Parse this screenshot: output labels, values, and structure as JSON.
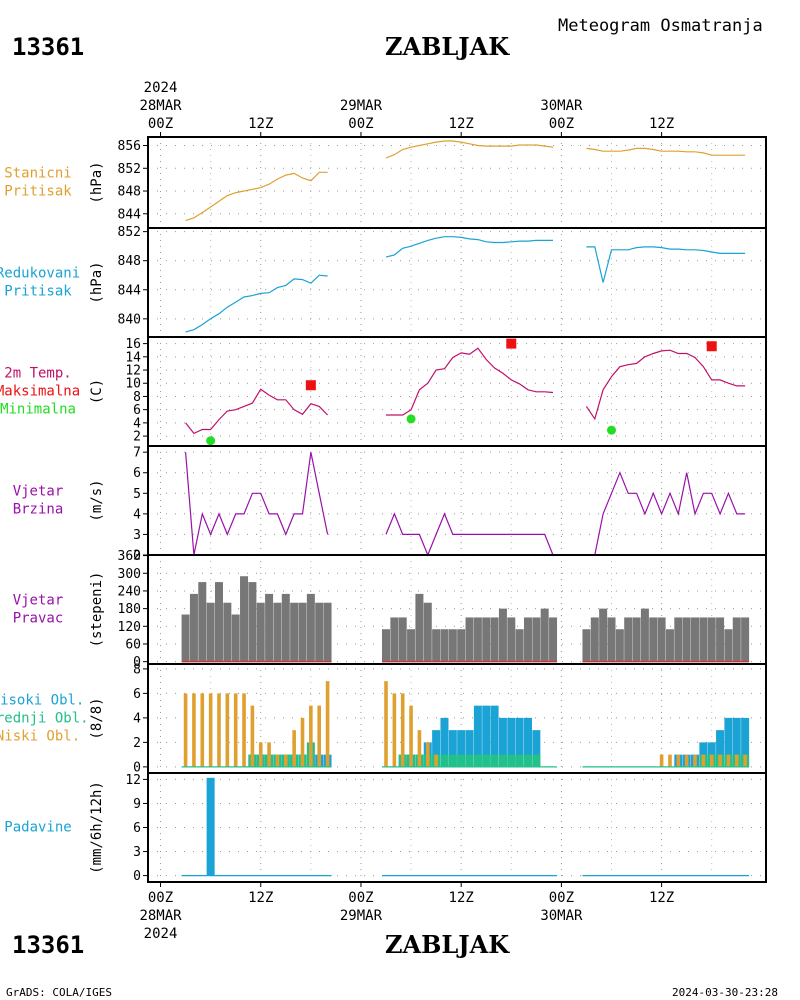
{
  "header": {
    "station_id": "13361",
    "station_name": "ZABLJAK",
    "product": "Meteogram Osmatranja"
  },
  "footer": {
    "station_id": "13361",
    "station_name": "ZABLJAK",
    "credit": "GrADS: COLA/IGES",
    "timestamp": "2024-03-30-23:28"
  },
  "time_axis": {
    "ticks": [
      {
        "t": 0,
        "label": "00Z",
        "date": "28MAR",
        "year": "2024"
      },
      {
        "t": 12,
        "label": "12Z"
      },
      {
        "t": 24,
        "label": "00Z",
        "date": "29MAR"
      },
      {
        "t": 36,
        "label": "12Z"
      },
      {
        "t": 48,
        "label": "00Z",
        "date": "30MAR"
      },
      {
        "t": 60,
        "label": "12Z"
      }
    ]
  },
  "colors": {
    "pressure": "#e0a030",
    "redpressure": "#1aa3d4",
    "temp": "#c0106a",
    "tmax": "#ee1111",
    "tmin": "#22dd22",
    "wind": "#9911aa",
    "direction": "#777777",
    "high_cloud": "#1aa3d4",
    "mid_cloud": "#22c08a",
    "low_cloud": "#e0a030",
    "precip": "#1aa3d4"
  },
  "chart_data": [
    {
      "id": "pressure",
      "type": "line",
      "label_lines": [
        "Stanicni",
        "Pritisak"
      ],
      "unit": "(hPa)",
      "ylim": [
        841.5,
        857.5
      ],
      "yticks": [
        844,
        848,
        852,
        856
      ],
      "series": [
        {
          "x": [
            3,
            4,
            5,
            6,
            7,
            8,
            9,
            10,
            11,
            12,
            13,
            14,
            15,
            16,
            17,
            18,
            19,
            20
          ],
          "y": [
            842.8,
            843.3,
            844.2,
            845.2,
            846.2,
            847.2,
            847.7,
            848.0,
            848.3,
            848.6,
            849.2,
            850.1,
            850.8,
            851.1,
            850.3,
            849.8,
            851.3,
            851.3
          ]
        },
        {
          "x": [
            27,
            28,
            29,
            30,
            31,
            32,
            33,
            34,
            35,
            36,
            37,
            38,
            39,
            40,
            41,
            42,
            43,
            44,
            45,
            46,
            47
          ],
          "y": [
            853.8,
            854.4,
            855.3,
            855.7,
            856.0,
            856.3,
            856.6,
            856.8,
            856.8,
            856.6,
            856.3,
            856.0,
            855.9,
            855.9,
            855.9,
            855.9,
            856.1,
            856.1,
            856.1,
            855.9,
            855.7
          ]
        },
        {
          "x": [
            51,
            52,
            53,
            54,
            55,
            56,
            57,
            58,
            59,
            60,
            61,
            62,
            63,
            64,
            65,
            66,
            67,
            68,
            69,
            70
          ],
          "y": [
            855.5,
            855.3,
            855.0,
            855.0,
            855.0,
            855.2,
            855.5,
            855.5,
            855.3,
            855.0,
            855.0,
            855.0,
            854.9,
            854.9,
            854.7,
            854.3,
            854.3,
            854.3,
            854.3,
            854.3
          ]
        }
      ]
    },
    {
      "id": "redpressure",
      "type": "line",
      "label_lines": [
        "Redukovani",
        "Pritisak"
      ],
      "unit": "(hPa)",
      "ylim": [
        837.5,
        852.5
      ],
      "yticks": [
        840,
        844,
        848,
        852
      ],
      "series": [
        {
          "x": [
            3,
            4,
            5,
            6,
            7,
            8,
            9,
            10,
            11,
            12,
            13,
            14,
            15,
            16,
            17,
            18,
            19,
            20
          ],
          "y": [
            838.2,
            838.5,
            839.2,
            840.0,
            840.7,
            841.6,
            842.3,
            843.0,
            843.2,
            843.5,
            843.6,
            844.3,
            844.6,
            845.5,
            845.4,
            844.9,
            846.0,
            845.9
          ]
        },
        {
          "x": [
            27,
            28,
            29,
            30,
            31,
            32,
            33,
            34,
            35,
            36,
            37,
            38,
            39,
            40,
            41,
            42,
            43,
            44,
            45,
            46,
            47
          ],
          "y": [
            848.5,
            848.8,
            849.7,
            850.0,
            850.4,
            850.8,
            851.1,
            851.3,
            851.3,
            851.2,
            851.0,
            850.9,
            850.6,
            850.5,
            850.5,
            850.6,
            850.7,
            850.7,
            850.8,
            850.8,
            850.8
          ]
        },
        {
          "x": [
            51,
            52,
            53,
            54,
            55,
            56,
            57,
            58,
            59,
            60,
            61,
            62,
            63,
            64,
            65,
            66,
            67,
            68,
            69,
            70
          ],
          "y": [
            849.9,
            849.9,
            845.0,
            849.5,
            849.5,
            849.5,
            849.8,
            849.9,
            849.9,
            849.8,
            849.6,
            849.6,
            849.5,
            849.5,
            849.4,
            849.2,
            849.0,
            849.0,
            849.0,
            849.0
          ]
        }
      ]
    },
    {
      "id": "temperature",
      "type": "line",
      "label_lines": [
        "2m Temp.",
        "Maksimalna",
        "Minimalna"
      ],
      "unit": "(C)",
      "ylim": [
        0.5,
        17
      ],
      "yticks": [
        2,
        4,
        6,
        8,
        10,
        12,
        14,
        16
      ],
      "series": [
        {
          "name": "2m Temp.",
          "segments": [
            {
              "x": [
                3,
                4,
                5,
                6,
                7,
                8,
                9,
                10,
                11,
                12,
                13,
                14,
                15,
                16,
                17,
                18,
                19,
                20
              ],
              "y": [
                4.0,
                2.4,
                3.0,
                3.0,
                4.5,
                5.8,
                6.0,
                6.5,
                7.0,
                9.1,
                8.2,
                7.5,
                7.5,
                6.0,
                5.3,
                6.9,
                6.5,
                5.2
              ]
            },
            {
              "x": [
                27,
                28,
                29,
                30,
                31,
                32,
                33,
                34,
                35,
                36,
                37,
                38,
                39,
                40,
                41,
                42,
                43,
                44,
                45,
                46,
                47
              ],
              "y": [
                5.2,
                5.2,
                5.2,
                6.0,
                9.0,
                10.0,
                12.0,
                12.2,
                13.9,
                14.6,
                14.4,
                15.3,
                13.6,
                12.3,
                11.5,
                10.5,
                9.9,
                9.0,
                8.7,
                8.7,
                8.6
              ]
            },
            {
              "x": [
                51,
                52,
                53,
                54,
                55,
                56,
                57,
                58,
                59,
                60,
                61,
                62,
                63,
                64,
                65,
                66,
                67,
                68,
                69,
                70
              ],
              "y": [
                6.5,
                4.6,
                9.0,
                11.0,
                12.5,
                12.8,
                13.0,
                14.0,
                14.5,
                14.9,
                15.0,
                14.5,
                14.5,
                13.9,
                12.5,
                10.5,
                10.5,
                10.0,
                9.6,
                9.6
              ]
            }
          ]
        },
        {
          "name": "Maksimalna",
          "x": [
            18,
            42,
            66
          ],
          "y": [
            9.7,
            16.0,
            15.6
          ]
        },
        {
          "name": "Minimalna",
          "x": [
            6,
            30,
            54
          ],
          "y": [
            1.3,
            4.6,
            2.9
          ]
        }
      ]
    },
    {
      "id": "wind_speed",
      "type": "line",
      "label_lines": [
        "Vjetar",
        "Brzina"
      ],
      "unit": "(m/s)",
      "ylim": [
        2,
        7.3
      ],
      "yticks": [
        2,
        3,
        4,
        5,
        6,
        7
      ],
      "series": [
        {
          "x": [
            3,
            4,
            5,
            6,
            7,
            8,
            9,
            10,
            11,
            12,
            13,
            14,
            15,
            16,
            17,
            18,
            19,
            20
          ],
          "y": [
            7,
            2,
            4,
            3,
            4,
            3,
            4,
            4,
            5,
            5,
            4,
            4,
            3,
            4,
            4,
            7,
            5,
            3
          ]
        },
        {
          "x": [
            27,
            28,
            29,
            30,
            31,
            32,
            33,
            34,
            35,
            36,
            37,
            38,
            39,
            40,
            41,
            42,
            43,
            44,
            45,
            46,
            47
          ],
          "y": [
            3,
            4,
            3,
            3,
            3,
            2,
            3,
            4,
            3,
            3,
            3,
            3,
            3,
            3,
            3,
            3,
            3,
            3,
            3,
            3,
            2
          ]
        },
        {
          "x": [
            51,
            52,
            53,
            54,
            55,
            56,
            57,
            58,
            59,
            60,
            61,
            62,
            63,
            64,
            65,
            66,
            67,
            68,
            69,
            70
          ],
          "y": [
            2,
            2,
            4,
            5,
            6,
            5,
            5,
            4,
            5,
            4,
            5,
            4,
            6,
            4,
            5,
            5,
            4,
            5,
            4,
            4
          ]
        }
      ]
    },
    {
      "id": "wind_direction",
      "type": "bar",
      "label_lines": [
        "Vjetar",
        "Pravac"
      ],
      "unit": "(stepeni)",
      "ylim": [
        -8,
        362
      ],
      "yticks": [
        0,
        60,
        120,
        180,
        240,
        300,
        360
      ],
      "yticklabels": [
        "0",
        "60",
        "120",
        "180",
        "240",
        "300",
        "360"
      ],
      "x": [
        3,
        4,
        5,
        6,
        7,
        8,
        9,
        10,
        11,
        12,
        13,
        14,
        15,
        16,
        17,
        18,
        19,
        20,
        27,
        28,
        29,
        30,
        31,
        32,
        33,
        34,
        35,
        36,
        37,
        38,
        39,
        40,
        41,
        42,
        43,
        44,
        45,
        46,
        47,
        51,
        52,
        53,
        54,
        55,
        56,
        57,
        58,
        59,
        60,
        61,
        62,
        63,
        64,
        65,
        66,
        67,
        68,
        69,
        70
      ],
      "values": [
        160,
        230,
        270,
        200,
        270,
        200,
        160,
        290,
        270,
        200,
        230,
        200,
        230,
        200,
        200,
        230,
        200,
        200,
        110,
        150,
        150,
        110,
        230,
        200,
        110,
        110,
        110,
        110,
        150,
        150,
        150,
        150,
        180,
        150,
        110,
        150,
        150,
        180,
        150,
        110,
        150,
        180,
        150,
        110,
        150,
        150,
        180,
        150,
        150,
        110,
        150,
        150,
        150,
        150,
        150,
        150,
        110,
        150,
        150
      ]
    },
    {
      "id": "clouds",
      "type": "bar",
      "label_lines": [
        "Visoki Obl.",
        "Srednji Obl.",
        "Niski Obl."
      ],
      "unit": "(8/8)",
      "ylim": [
        -0.5,
        8.4
      ],
      "yticks": [
        0,
        2,
        4,
        6,
        8
      ],
      "x": [
        3,
        4,
        5,
        6,
        7,
        8,
        9,
        10,
        11,
        12,
        13,
        14,
        15,
        16,
        17,
        18,
        19,
        20,
        27,
        28,
        29,
        30,
        31,
        32,
        33,
        34,
        35,
        36,
        37,
        38,
        39,
        40,
        41,
        42,
        43,
        44,
        45,
        46,
        47,
        51,
        52,
        53,
        54,
        55,
        56,
        57,
        58,
        59,
        60,
        61,
        62,
        63,
        64,
        65,
        66,
        67,
        68,
        69,
        70
      ],
      "series": [
        {
          "name": "Visoki Obl.",
          "values": [
            0,
            0,
            0,
            0,
            0,
            0,
            0,
            0,
            1,
            1,
            1,
            1,
            1,
            1,
            1,
            1,
            1,
            1,
            0,
            0,
            1,
            1,
            1,
            2,
            3,
            4,
            3,
            3,
            3,
            5,
            5,
            5,
            4,
            4,
            4,
            4,
            3,
            0,
            0,
            0,
            0,
            0,
            0,
            0,
            0,
            0,
            0,
            0,
            0,
            0,
            1,
            1,
            1,
            2,
            2,
            3,
            4,
            4,
            4
          ]
        },
        {
          "name": "Srednji Obl.",
          "values": [
            0,
            0,
            0,
            0,
            0,
            0,
            0,
            0,
            1,
            1,
            1,
            1,
            1,
            1,
            1,
            2,
            0,
            0,
            0,
            0,
            1,
            1,
            1,
            1,
            1,
            1,
            1,
            1,
            1,
            1,
            1,
            1,
            1,
            1,
            1,
            1,
            1,
            0,
            0,
            0,
            0,
            0,
            0,
            0,
            0,
            0,
            0,
            0,
            0,
            0,
            0,
            0,
            0,
            1,
            1,
            1,
            1,
            1,
            1
          ]
        },
        {
          "name": "Niski Obl.",
          "values": [
            6,
            6,
            6,
            6,
            6,
            6,
            6,
            6,
            5,
            2,
            2,
            1,
            1,
            3,
            4,
            5,
            5,
            7,
            7,
            6,
            6,
            5,
            3,
            2,
            1,
            0,
            0,
            0,
            0,
            0,
            0,
            0,
            0,
            0,
            0,
            0,
            0,
            0,
            0,
            0,
            0,
            0,
            0,
            0,
            0,
            0,
            0,
            0,
            1,
            1,
            1,
            1,
            1,
            1,
            1,
            1,
            1,
            1,
            1
          ]
        }
      ]
    },
    {
      "id": "precipitation",
      "type": "bar",
      "label_lines": [
        "Padavine"
      ],
      "unit": "(mm/6h/12h)",
      "ylim": [
        -0.8,
        12.8
      ],
      "yticks": [
        0,
        3,
        6,
        9,
        12
      ],
      "x": [
        6
      ],
      "values": [
        12.2
      ]
    }
  ]
}
